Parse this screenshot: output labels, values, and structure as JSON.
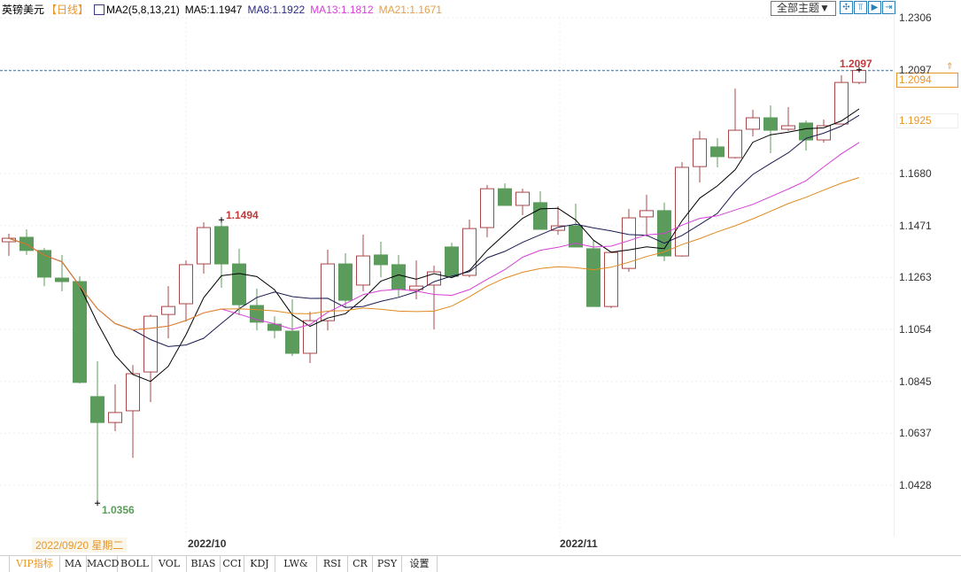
{
  "header": {
    "symbol": "英镑美元",
    "period": "【日线】",
    "ma_group": "MA2(5,8,13,21)",
    "ma5": "MA5:1.1947",
    "ma8": "MA8:1.1922",
    "ma13": "MA13:1.1812",
    "ma21": "MA21:1.1671"
  },
  "toolbar": {
    "theme_label": "全部主题▼",
    "icons": [
      "crosshair-icon",
      "zoom-in-icon",
      "step-forward-icon",
      "jump-end-icon"
    ]
  },
  "colors": {
    "up": "#a8474a",
    "down": "#5b9b5b",
    "ma5": "#000000",
    "ma8": "#1a1a50",
    "ma13": "#d63fd6",
    "ma21": "#e08a1e"
  },
  "price_axis": {
    "ticks": [
      "1.2306",
      "1.2097",
      "1.1680",
      "1.1471",
      "1.1263",
      "1.1054",
      "1.0845",
      "1.0637",
      "1.0428"
    ],
    "current": "1.2094",
    "marker": "1.1925"
  },
  "annotations": {
    "high": "1.2097",
    "mid_high": "1.1494",
    "low": "1.0356"
  },
  "dates": {
    "cursor": "2022/09/20 星期二",
    "oct": "2022/10",
    "nov": "2022/11"
  },
  "tabs": [
    "",
    "VIP指标",
    "MA",
    "MACD",
    "BOLL",
    "VOL",
    "BIAS",
    "CCI",
    "KDJ",
    "LW&",
    "RSI",
    "CR",
    "PSY",
    "设置"
  ],
  "chart_data": {
    "type": "candlestick",
    "ylim": [
      1.0356,
      1.2306
    ],
    "x_ticks": [
      "2022/10",
      "2022/11"
    ],
    "ohlc": [
      [
        1.1406,
        1.1438,
        1.1349,
        1.142
      ],
      [
        1.1424,
        1.1456,
        1.1353,
        1.1371
      ],
      [
        1.1371,
        1.1381,
        1.1228,
        1.1264
      ],
      [
        1.126,
        1.1353,
        1.1207,
        1.1246
      ],
      [
        1.1246,
        1.1267,
        1.0837,
        1.0841
      ],
      [
        1.0784,
        1.0926,
        1.0356,
        1.068
      ],
      [
        1.068,
        1.0833,
        1.0645,
        1.072
      ],
      [
        1.0727,
        1.0911,
        1.0538,
        1.0876
      ],
      [
        1.0883,
        1.1114,
        1.0762,
        1.1107
      ],
      [
        1.1114,
        1.1228,
        1.1018,
        1.1146
      ],
      [
        1.1157,
        1.1331,
        1.1086,
        1.1314
      ],
      [
        1.1317,
        1.1484,
        1.1278,
        1.1463
      ],
      [
        1.1467,
        1.1494,
        1.1221,
        1.1317
      ],
      [
        1.1317,
        1.1378,
        1.1111,
        1.1153
      ],
      [
        1.115,
        1.1218,
        1.105,
        1.1083
      ],
      [
        1.1075,
        1.1107,
        1.1018,
        1.105
      ],
      [
        1.1047,
        1.1175,
        1.0947,
        1.0958
      ],
      [
        1.0958,
        1.1125,
        1.0919,
        1.1089
      ],
      [
        1.1089,
        1.1374,
        1.105,
        1.1317
      ],
      [
        1.1317,
        1.136,
        1.1143,
        1.1171
      ],
      [
        1.1232,
        1.1435,
        1.1207,
        1.1349
      ],
      [
        1.1353,
        1.1406,
        1.1264,
        1.1314
      ],
      [
        1.1314,
        1.1353,
        1.1185,
        1.1214
      ],
      [
        1.1214,
        1.1331,
        1.1175,
        1.1228
      ],
      [
        1.1232,
        1.131,
        1.1054,
        1.1285
      ],
      [
        1.1385,
        1.1402,
        1.1264,
        1.1267
      ],
      [
        1.1271,
        1.1495,
        1.1264,
        1.1459
      ],
      [
        1.1463,
        1.1634,
        1.1424,
        1.1619
      ],
      [
        1.1619,
        1.1641,
        1.1552,
        1.1552
      ],
      [
        1.1552,
        1.1619,
        1.1513,
        1.1605
      ],
      [
        1.1563,
        1.1609,
        1.1456,
        1.1456
      ],
      [
        1.1452,
        1.1549,
        1.1434,
        1.147
      ],
      [
        1.147,
        1.1559,
        1.1385,
        1.1385
      ],
      [
        1.1378,
        1.141,
        1.1146,
        1.1146
      ],
      [
        1.1146,
        1.1367,
        1.1139,
        1.1363
      ],
      [
        1.1299,
        1.1538,
        1.1285,
        1.1502
      ],
      [
        1.1506,
        1.1595,
        1.1427,
        1.1531
      ],
      [
        1.1531,
        1.1563,
        1.1328,
        1.1349
      ],
      [
        1.1349,
        1.1726,
        1.1346,
        1.1705
      ],
      [
        1.1708,
        1.1851,
        1.1644,
        1.1819
      ],
      [
        1.1787,
        1.1822,
        1.1705,
        1.1748
      ],
      [
        1.1744,
        1.2021,
        1.174,
        1.1854
      ],
      [
        1.1858,
        1.1936,
        1.1829,
        1.1904
      ],
      [
        1.1904,
        1.1954,
        1.1762,
        1.1854
      ],
      [
        1.1858,
        1.1947,
        1.1851,
        1.1872
      ],
      [
        1.1883,
        1.1893,
        1.1772,
        1.1815
      ],
      [
        1.1815,
        1.1897,
        1.1804,
        1.1872
      ],
      [
        1.1879,
        1.2075,
        1.1879,
        1.2046
      ],
      [
        1.2046,
        1.2097,
        1.2039,
        1.2094
      ]
    ],
    "ma_periods": [
      5,
      8,
      13,
      21
    ]
  }
}
